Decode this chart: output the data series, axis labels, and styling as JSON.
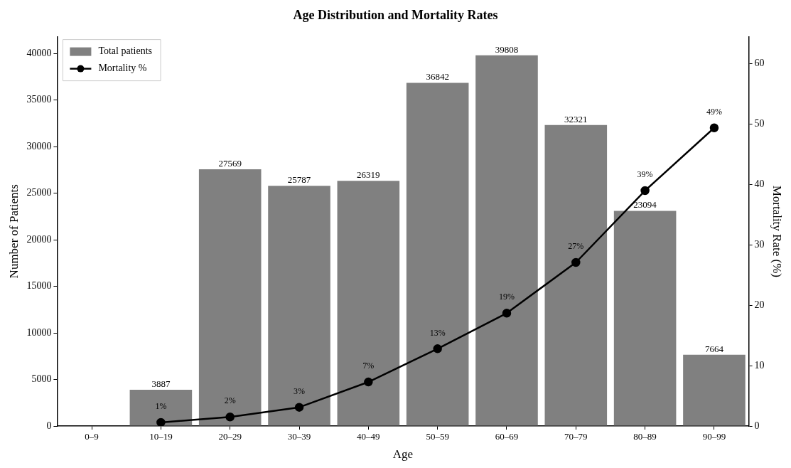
{
  "chart_data": {
    "type": "bar",
    "title": "Age Distribution and Mortality Rates",
    "xlabel": "Age",
    "ylabel": "Number of Patients",
    "y2label": "Mortality Rate (%)",
    "categories": [
      "0–9",
      "10–19",
      "20–29",
      "30–39",
      "40–49",
      "50–59",
      "60–69",
      "70–79",
      "80–89",
      "90–99"
    ],
    "series": [
      {
        "name": "Total patients",
        "color": "#808080",
        "values": [
          null,
          3887,
          27569,
          25787,
          26319,
          36842,
          39808,
          32321,
          23094,
          7664
        ],
        "value_labels": [
          null,
          "3887",
          "27569",
          "25787",
          "26319",
          "36842",
          "39808",
          "32321",
          "23094",
          "7664"
        ]
      },
      {
        "name": "Mortality %",
        "type": "line",
        "axis": "y2",
        "color": "#000000",
        "values": [
          null,
          0.6,
          1.5,
          3.1,
          7.3,
          12.8,
          18.7,
          27.1,
          39.0,
          49.4
        ],
        "value_labels": [
          null,
          "1%",
          "2%",
          "3%",
          "7%",
          "13%",
          "19%",
          "27%",
          "39%",
          "49%"
        ]
      }
    ],
    "ylim": [
      0,
      41800
    ],
    "yticks": [
      0,
      5000,
      10000,
      15000,
      20000,
      25000,
      30000,
      35000,
      40000
    ],
    "y2lim": [
      0,
      64.5
    ],
    "y2ticks": [
      0,
      10,
      20,
      30,
      40,
      50,
      60
    ],
    "grid": false,
    "legend": "top left",
    "marker": "circle",
    "line_style": "solid"
  }
}
